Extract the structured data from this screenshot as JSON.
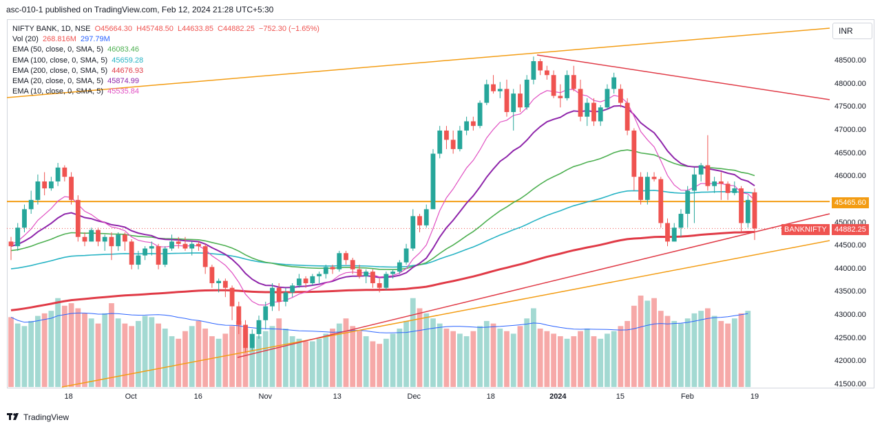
{
  "header": {
    "publish_line": "asc-010-1 published on TradingView.com, Feb 12, 2024 21:28 UTC+5:30"
  },
  "legend": {
    "symbol_line": {
      "label": "NIFTY BANK, 1D, NSE",
      "o": "O45664.30",
      "h": "H45748.50",
      "l": "L44633.85",
      "c": "C44882.25",
      "chg": "−752.30 (−1.65%)"
    },
    "vol": {
      "label": "Vol (20)",
      "v1": "268.816M",
      "v2": "297.79M"
    },
    "ema50": {
      "label": "EMA (50, close, 0, SMA, 5)",
      "value": "46083.46",
      "color": "#4caf50"
    },
    "ema100": {
      "label": "EMA (100, close, 0, SMA, 5)",
      "value": "45659.28",
      "color": "#26b3c4"
    },
    "ema200": {
      "label": "EMA (200, close, 0, SMA, 5)",
      "value": "44676.93",
      "color": "#e03a46"
    },
    "ema20": {
      "label": "EMA (20, close, 0, SMA, 5)",
      "value": "45874.99",
      "color": "#8e24aa"
    },
    "ema10": {
      "label": "EMA (10, close, 0, SMA, 5)",
      "value": "45535.84",
      "color": "#e04fc2"
    }
  },
  "axis": {
    "currency": "INR",
    "yticks": [
      "48500.00",
      "48000.00",
      "47500.00",
      "47000.00",
      "46500.00",
      "46000.00",
      "45000.00",
      "44500.00",
      "44000.00",
      "43500.00",
      "43000.00",
      "42500.00",
      "42000.00",
      "41500.00"
    ],
    "xticks": [
      "18",
      "Oct",
      "16",
      "Nov",
      "13",
      "Dec",
      "18",
      "2024",
      "15",
      "Feb",
      "19"
    ]
  },
  "tags": {
    "level_price": "45465.60",
    "symbol": "BANKNIFTY",
    "last_price": "44882.25"
  },
  "footer": {
    "brand": "TradingView"
  },
  "colors": {
    "up": "#26a69a",
    "down": "#ef5350",
    "orange": "#f39c12",
    "red_line": "#e03a46"
  },
  "chart_data": {
    "type": "candlestick",
    "title": "NIFTY BANK, 1D, NSE",
    "ylim": [
      41450,
      49000
    ],
    "last_close": 44882.25,
    "horizontal_level": 45465.6,
    "x_tick_labels": [
      "18",
      "Oct",
      "16",
      "Nov",
      "13",
      "Dec",
      "18",
      "2024",
      "15",
      "Feb",
      "19"
    ],
    "candles_ohlc": [
      [
        44600,
        44700,
        44200,
        44500
      ],
      [
        44500,
        45000,
        44400,
        44900
      ],
      [
        44900,
        45400,
        44800,
        45300
      ],
      [
        45300,
        45700,
        45200,
        45500
      ],
      [
        45500,
        46050,
        45400,
        45900
      ],
      [
        45900,
        46100,
        45600,
        45750
      ],
      [
        45750,
        46000,
        45700,
        45900
      ],
      [
        45900,
        46300,
        45800,
        46200
      ],
      [
        46200,
        46250,
        45900,
        46000
      ],
      [
        46000,
        46100,
        45400,
        45500
      ],
      [
        45500,
        45600,
        44600,
        44700
      ],
      [
        44700,
        44800,
        44500,
        44600
      ],
      [
        44600,
        44900,
        44600,
        44850
      ],
      [
        44850,
        44900,
        44500,
        44600
      ],
      [
        44600,
        44750,
        44400,
        44700
      ],
      [
        44700,
        44800,
        44200,
        44500
      ],
      [
        44500,
        44800,
        44400,
        44750
      ],
      [
        44750,
        44800,
        44400,
        44600
      ],
      [
        44600,
        44650,
        44000,
        44100
      ],
      [
        44100,
        44400,
        44000,
        44300
      ],
      [
        44300,
        44500,
        44200,
        44450
      ],
      [
        44450,
        44600,
        44300,
        44500
      ],
      [
        44500,
        44550,
        44000,
        44100
      ],
      [
        44100,
        44500,
        44050,
        44450
      ],
      [
        44450,
        44750,
        44400,
        44600
      ],
      [
        44600,
        44700,
        44450,
        44550
      ],
      [
        44550,
        44700,
        44400,
        44450
      ],
      [
        44450,
        44600,
        44300,
        44550
      ],
      [
        44550,
        44600,
        44400,
        44500
      ],
      [
        44500,
        44550,
        43900,
        44050
      ],
      [
        44050,
        44100,
        43600,
        43700
      ],
      [
        43700,
        43800,
        43500,
        43750
      ],
      [
        43750,
        43800,
        43400,
        43600
      ],
      [
        43600,
        43650,
        42900,
        43200
      ],
      [
        43200,
        43300,
        42600,
        42800
      ],
      [
        42800,
        42900,
        42200,
        42300
      ],
      [
        42300,
        42700,
        42250,
        42600
      ],
      [
        42600,
        43000,
        42500,
        42900
      ],
      [
        42900,
        43300,
        42700,
        43200
      ],
      [
        43200,
        43700,
        43100,
        43600
      ],
      [
        43600,
        43700,
        43100,
        43300
      ],
      [
        43300,
        43600,
        43200,
        43500
      ],
      [
        43500,
        43700,
        43400,
        43650
      ],
      [
        43650,
        43900,
        43600,
        43800
      ],
      [
        43800,
        43850,
        43600,
        43700
      ],
      [
        43700,
        43900,
        43650,
        43850
      ],
      [
        43850,
        43950,
        43700,
        43900
      ],
      [
        43900,
        44100,
        43800,
        44050
      ],
      [
        44050,
        44100,
        43900,
        44000
      ],
      [
        44000,
        44400,
        43950,
        44350
      ],
      [
        44350,
        44400,
        44100,
        44200
      ],
      [
        44200,
        44250,
        43900,
        44000
      ],
      [
        44000,
        44100,
        43800,
        43850
      ],
      [
        43850,
        44000,
        43700,
        43950
      ],
      [
        43950,
        44000,
        43600,
        43700
      ],
      [
        43700,
        43800,
        43500,
        43600
      ],
      [
        43600,
        43950,
        43550,
        43900
      ],
      [
        43900,
        44000,
        43800,
        43950
      ],
      [
        43950,
        44200,
        43900,
        44150
      ],
      [
        44150,
        44550,
        44100,
        44450
      ],
      [
        44450,
        45300,
        44400,
        45150
      ],
      [
        45150,
        45200,
        44800,
        44950
      ],
      [
        44950,
        45400,
        44900,
        45300
      ],
      [
        45300,
        46600,
        45300,
        46500
      ],
      [
        46500,
        47100,
        46400,
        47000
      ],
      [
        47000,
        47100,
        46600,
        46800
      ],
      [
        46800,
        47000,
        46500,
        46600
      ],
      [
        46600,
        47100,
        46550,
        47000
      ],
      [
        47000,
        47300,
        46900,
        47200
      ],
      [
        47200,
        47300,
        47000,
        47100
      ],
      [
        47100,
        47650,
        47050,
        47600
      ],
      [
        47600,
        48100,
        47550,
        48000
      ],
      [
        48000,
        48200,
        47800,
        47850
      ],
      [
        47850,
        48050,
        47700,
        47900
      ],
      [
        47900,
        48100,
        47300,
        47400
      ],
      [
        47400,
        47900,
        47000,
        47800
      ],
      [
        47800,
        48000,
        47400,
        47500
      ],
      [
        47500,
        48200,
        47450,
        48100
      ],
      [
        48100,
        48600,
        48000,
        48500
      ],
      [
        48500,
        48550,
        48200,
        48300
      ],
      [
        48300,
        48400,
        48100,
        48200
      ],
      [
        48200,
        48300,
        47700,
        47750
      ],
      [
        47750,
        48000,
        47500,
        47700
      ],
      [
        47700,
        48300,
        47650,
        48200
      ],
      [
        48200,
        48400,
        47850,
        47900
      ],
      [
        47900,
        48100,
        47200,
        47300
      ],
      [
        47300,
        47700,
        47100,
        47600
      ],
      [
        47600,
        47700,
        47100,
        47200
      ],
      [
        47200,
        47550,
        47100,
        47500
      ],
      [
        47500,
        48000,
        47450,
        47900
      ],
      [
        47900,
        48250,
        47800,
        48150
      ],
      [
        47900,
        48000,
        47500,
        47600
      ],
      [
        47600,
        47700,
        46900,
        47000
      ],
      [
        47000,
        47050,
        45700,
        46000
      ],
      [
        46000,
        46100,
        45400,
        45500
      ],
      [
        45500,
        46100,
        45400,
        46000
      ],
      [
        46000,
        46100,
        45900,
        45950
      ],
      [
        45950,
        46000,
        44900,
        45000
      ],
      [
        45000,
        45100,
        44500,
        44600
      ],
      [
        44600,
        45000,
        44600,
        44900
      ],
      [
        44900,
        45300,
        44700,
        45200
      ],
      [
        45200,
        45800,
        44900,
        45700
      ],
      [
        45700,
        46200,
        45000,
        46050
      ],
      [
        46050,
        46300,
        45900,
        46250
      ],
      [
        46250,
        46900,
        45700,
        45800
      ],
      [
        45800,
        46000,
        45650,
        45900
      ],
      [
        45900,
        46100,
        45500,
        45850
      ],
      [
        45850,
        45900,
        45500,
        45650
      ],
      [
        45650,
        45900,
        45600,
        45750
      ],
      [
        45750,
        45800,
        44800,
        45000
      ],
      [
        45000,
        45600,
        44900,
        45500
      ],
      [
        45664.3,
        45748.5,
        44633.85,
        44882.25
      ]
    ],
    "volume_estimated": [
      55,
      50,
      48,
      52,
      56,
      58,
      60,
      70,
      64,
      66,
      62,
      58,
      54,
      50,
      58,
      66,
      54,
      50,
      48,
      52,
      56,
      55,
      50,
      46,
      40,
      38,
      44,
      48,
      52,
      46,
      40,
      38,
      42,
      48,
      52,
      46,
      42,
      40,
      44,
      48,
      54,
      46,
      40,
      38,
      36,
      36,
      38,
      42,
      46,
      50,
      54,
      48,
      44,
      40,
      36,
      34,
      38,
      42,
      46,
      52,
      70,
      62,
      58,
      54,
      50,
      46,
      44,
      42,
      40,
      44,
      48,
      52,
      50,
      46,
      44,
      42,
      48,
      54,
      62,
      46,
      44,
      42,
      40,
      38,
      40,
      44,
      46,
      40,
      38,
      42,
      44,
      48,
      52,
      64,
      72,
      68,
      70,
      60,
      56,
      52,
      50,
      54,
      58,
      60,
      62,
      56,
      52,
      50,
      54,
      58,
      60
    ]
  }
}
